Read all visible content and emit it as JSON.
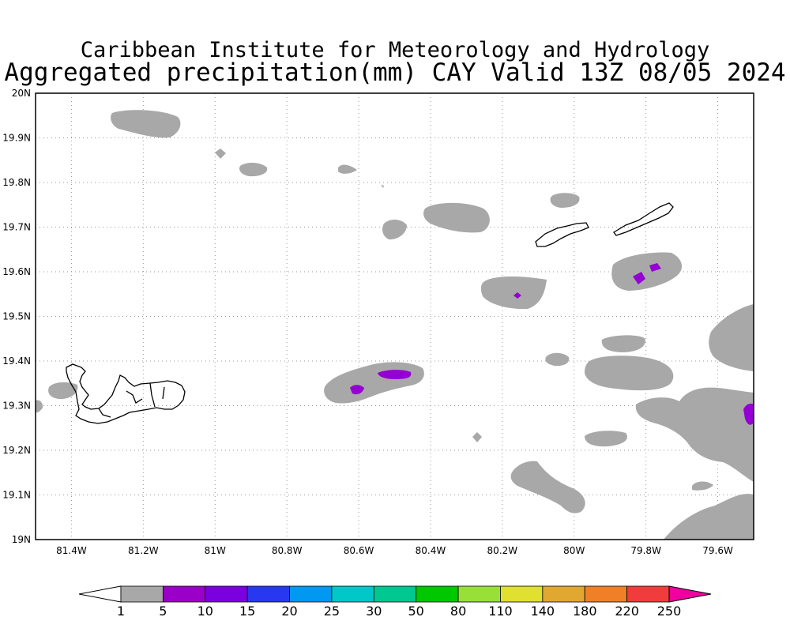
{
  "title": {
    "line1": "Caribbean Institute for Meteorology and Hydrology",
    "line2": "Aggregated precipitation(mm) CAY Valid 13Z 08/05 2024"
  },
  "map": {
    "lat_labels": [
      "20N",
      "19.9N",
      "19.8N",
      "19.7N",
      "19.6N",
      "19.5N",
      "19.4N",
      "19.3N",
      "19.2N",
      "19.1N",
      "19N"
    ],
    "lat_values": [
      20,
      19.9,
      19.8,
      19.7,
      19.6,
      19.5,
      19.4,
      19.3,
      19.2,
      19.1,
      19.0
    ],
    "lon_labels": [
      "81.4W",
      "81.2W",
      "81W",
      "80.8W",
      "80.6W",
      "80.4W",
      "80.2W",
      "80W",
      "79.8W",
      "79.6W"
    ],
    "lon_values": [
      -81.4,
      -81.2,
      -81.0,
      -80.8,
      -80.6,
      -80.4,
      -80.2,
      -80.0,
      -79.8,
      -79.6
    ],
    "lon_range": [
      -81.5,
      -79.5
    ],
    "lat_range": [
      19.0,
      20.0
    ],
    "grid": "dotted",
    "precip_color_gray": "#a8a8a8",
    "precip_color_purple": "#9400d3"
  },
  "colorbar": {
    "labels": [
      "1",
      "5",
      "10",
      "15",
      "20",
      "25",
      "30",
      "50",
      "80",
      "110",
      "140",
      "180",
      "220",
      "250"
    ],
    "colors": [
      "#a8a8a8",
      "#9a00c8",
      "#7a00e0",
      "#2838f0",
      "#0098f0",
      "#00c8c8",
      "#00c890",
      "#00c800",
      "#98e038",
      "#e0e030",
      "#e0a830",
      "#f08028",
      "#f03c3c",
      "#f00090"
    ],
    "under_color": "#ffffff",
    "over_color": "#f000a0"
  }
}
